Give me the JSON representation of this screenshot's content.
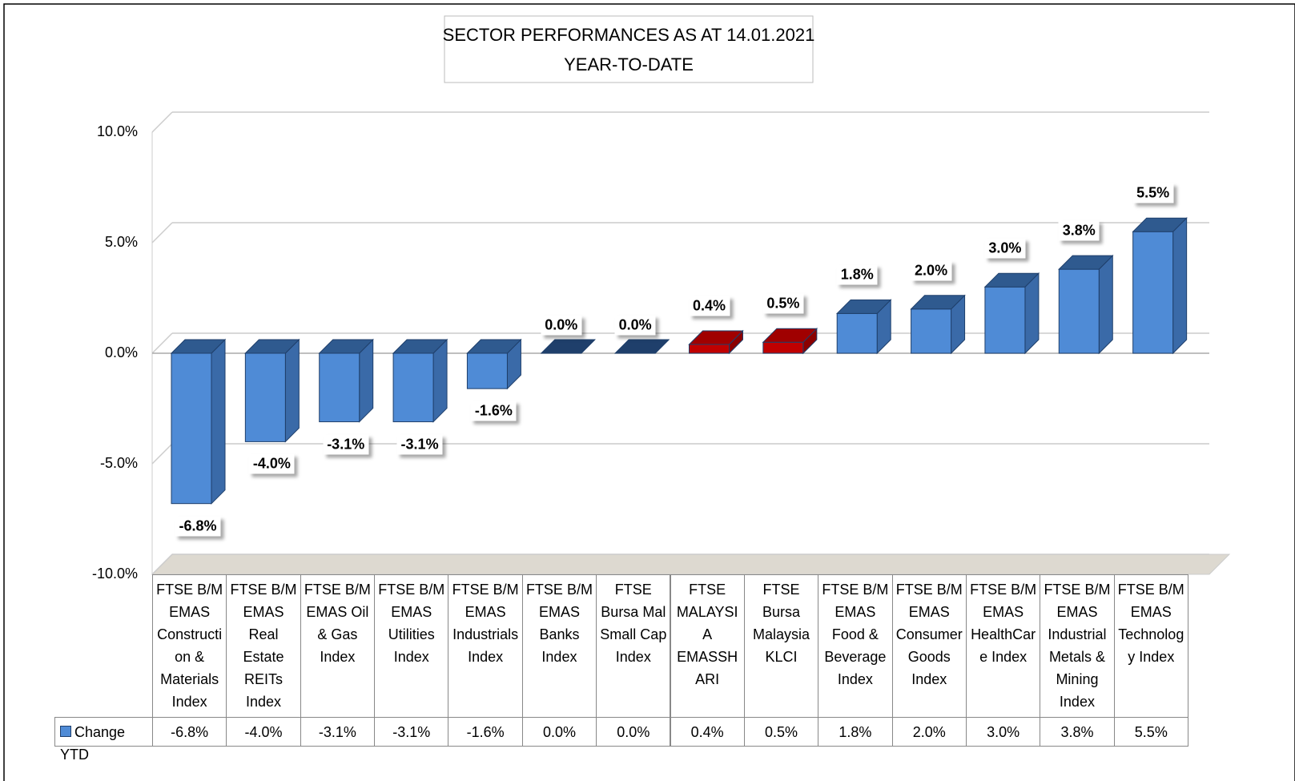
{
  "chart_data": {
    "type": "bar",
    "title": "SECTOR PERFORMANCES AS AT 14.01.2021",
    "subtitle": "YEAR-TO-DATE",
    "categories": [
      "FTSE B/M EMAS Construction & Materials Index",
      "FTSE B/M EMAS Real Estate REITs Index",
      "FTSE B/M EMAS Oil & Gas Index",
      "FTSE B/M EMAS Utilities Index",
      "FTSE B/M EMAS Industrials Index",
      "FTSE B/M EMAS Banks Index",
      "FTSE Bursa Mal Small Cap Index",
      "FTSE MALAYSIA EMASSHARI",
      "FTSE Bursa Malaysia KLCI",
      "FTSE B/M EMAS Food & Beverage Index",
      "FTSE B/M EMAS Consumer Goods Index",
      "FTSE B/M EMAS HealthCare Index",
      "FTSE B/M EMAS Industrial Metals & Mining Index",
      "FTSE B/M EMAS Technology Index"
    ],
    "series": [
      {
        "name": "Change YTD",
        "color": "#4f8bd6",
        "values": [
          -6.8,
          -4.0,
          -3.1,
          -3.1,
          -1.6,
          0.0,
          0.0,
          0.4,
          0.5,
          1.8,
          2.0,
          3.0,
          3.8,
          5.5
        ],
        "value_labels": [
          "-6.8%",
          "-4.0%",
          "-3.1%",
          "-3.1%",
          "-1.6%",
          "0.0%",
          "0.0%",
          "0.4%",
          "0.5%",
          "1.8%",
          "2.0%",
          "3.0%",
          "3.8%",
          "5.5%"
        ],
        "colors": [
          "#4f8bd6",
          "#4f8bd6",
          "#4f8bd6",
          "#4f8bd6",
          "#4f8bd6",
          "#4f8bd6",
          "#4f8bd6",
          "#c00000",
          "#c00000",
          "#4f8bd6",
          "#4f8bd6",
          "#4f8bd6",
          "#4f8bd6",
          "#4f8bd6"
        ]
      }
    ],
    "ylim": [
      -10,
      10
    ],
    "yticks": [
      {
        "value": -10,
        "label": "-10.0%"
      },
      {
        "value": -5,
        "label": "-5.0%"
      },
      {
        "value": 0,
        "label": "0.0%"
      },
      {
        "value": 5,
        "label": "5.0%"
      },
      {
        "value": 10,
        "label": "10.0%"
      }
    ],
    "grid": true
  }
}
